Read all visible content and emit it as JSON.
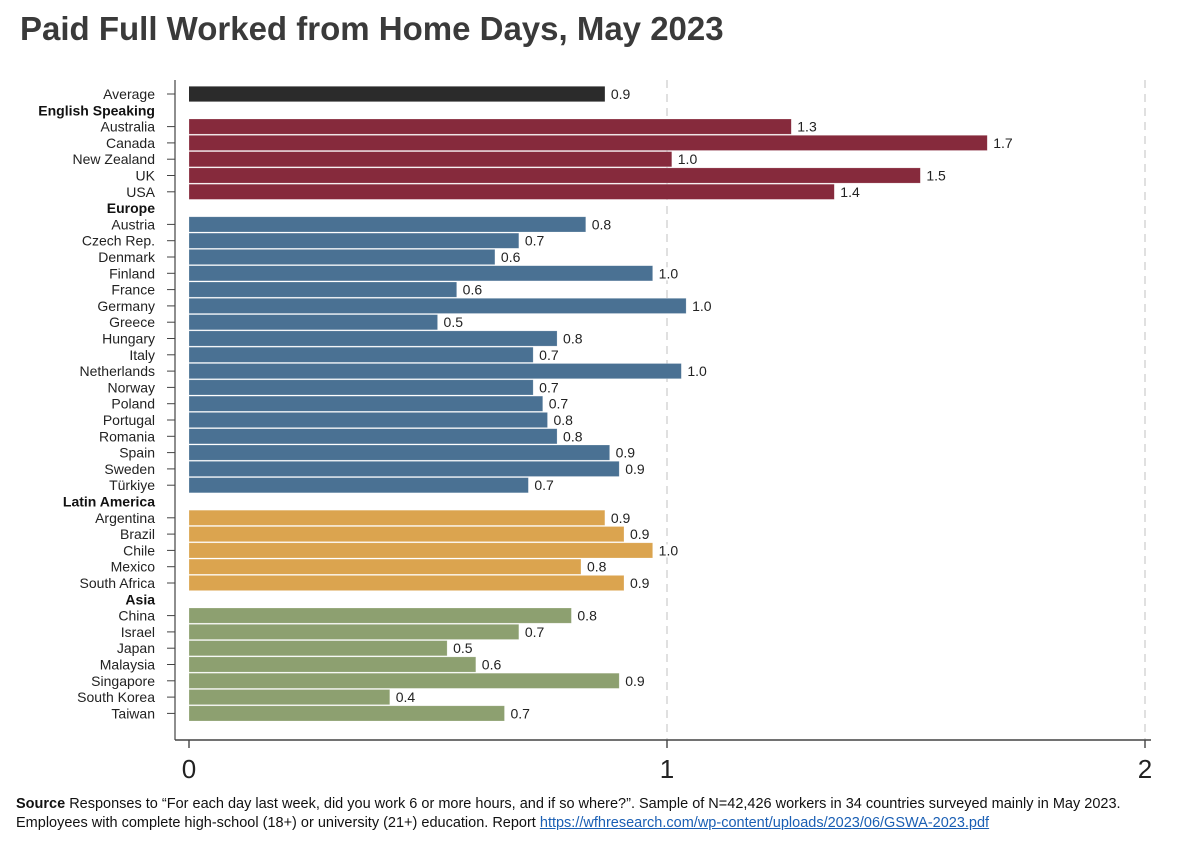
{
  "title": "Paid Full Worked from Home Days, May 2023",
  "source": {
    "label": "Source",
    "text": " Responses to “For each day last week, did you work 6 or more hours, and if so where?”. Sample of N=42,426 workers in 34 countries surveyed mainly in May 2023. Employees with complete high-school (18+) or university (21+) education. Report ",
    "link": "https://wfhresearch.com/wp-content/uploads/2023/06/GSWA-2023.pdf"
  },
  "colors": {
    "Average": "#2b2b2b",
    "English Speaking": "#862a3c",
    "Europe": "#4a7193",
    "Latin America": "#dba44f",
    "Asia": "#8da070"
  },
  "chart_data": {
    "type": "bar",
    "orientation": "horizontal",
    "xlim": [
      0,
      2
    ],
    "xticks": [
      "0",
      "1",
      "2"
    ],
    "grid": "vertical dashed",
    "rows": [
      {
        "kind": "bar",
        "label": "Average",
        "group": "Average",
        "value": 0.87,
        "value_label": "0.9"
      },
      {
        "kind": "header",
        "label": "English Speaking"
      },
      {
        "kind": "bar",
        "label": "Australia",
        "group": "English Speaking",
        "value": 1.26,
        "value_label": "1.3"
      },
      {
        "kind": "bar",
        "label": "Canada",
        "group": "English Speaking",
        "value": 1.67,
        "value_label": "1.7"
      },
      {
        "kind": "bar",
        "label": "New Zealand",
        "group": "English Speaking",
        "value": 1.01,
        "value_label": "1.0"
      },
      {
        "kind": "bar",
        "label": "UK",
        "group": "English Speaking",
        "value": 1.53,
        "value_label": "1.5"
      },
      {
        "kind": "bar",
        "label": "USA",
        "group": "English Speaking",
        "value": 1.35,
        "value_label": "1.4"
      },
      {
        "kind": "header",
        "label": "Europe"
      },
      {
        "kind": "bar",
        "label": "Austria",
        "group": "Europe",
        "value": 0.83,
        "value_label": "0.8"
      },
      {
        "kind": "bar",
        "label": "Czech Rep.",
        "group": "Europe",
        "value": 0.69,
        "value_label": "0.7"
      },
      {
        "kind": "bar",
        "label": "Denmark",
        "group": "Europe",
        "value": 0.64,
        "value_label": "0.6"
      },
      {
        "kind": "bar",
        "label": "Finland",
        "group": "Europe",
        "value": 0.97,
        "value_label": "1.0"
      },
      {
        "kind": "bar",
        "label": "France",
        "group": "Europe",
        "value": 0.56,
        "value_label": "0.6"
      },
      {
        "kind": "bar",
        "label": "Germany",
        "group": "Europe",
        "value": 1.04,
        "value_label": "1.0"
      },
      {
        "kind": "bar",
        "label": "Greece",
        "group": "Europe",
        "value": 0.52,
        "value_label": "0.5"
      },
      {
        "kind": "bar",
        "label": "Hungary",
        "group": "Europe",
        "value": 0.77,
        "value_label": "0.8"
      },
      {
        "kind": "bar",
        "label": "Italy",
        "group": "Europe",
        "value": 0.72,
        "value_label": "0.7"
      },
      {
        "kind": "bar",
        "label": "Netherlands",
        "group": "Europe",
        "value": 1.03,
        "value_label": "1.0"
      },
      {
        "kind": "bar",
        "label": "Norway",
        "group": "Europe",
        "value": 0.72,
        "value_label": "0.7"
      },
      {
        "kind": "bar",
        "label": "Poland",
        "group": "Europe",
        "value": 0.74,
        "value_label": "0.7"
      },
      {
        "kind": "bar",
        "label": "Portugal",
        "group": "Europe",
        "value": 0.75,
        "value_label": "0.8"
      },
      {
        "kind": "bar",
        "label": "Romania",
        "group": "Europe",
        "value": 0.77,
        "value_label": "0.8"
      },
      {
        "kind": "bar",
        "label": "Spain",
        "group": "Europe",
        "value": 0.88,
        "value_label": "0.9"
      },
      {
        "kind": "bar",
        "label": "Sweden",
        "group": "Europe",
        "value": 0.9,
        "value_label": "0.9"
      },
      {
        "kind": "bar",
        "label": "Türkiye",
        "group": "Europe",
        "value": 0.71,
        "value_label": "0.7"
      },
      {
        "kind": "header",
        "label": "Latin America"
      },
      {
        "kind": "bar",
        "label": "Argentina",
        "group": "Latin America",
        "value": 0.87,
        "value_label": "0.9"
      },
      {
        "kind": "bar",
        "label": "Brazil",
        "group": "Latin America",
        "value": 0.91,
        "value_label": "0.9"
      },
      {
        "kind": "bar",
        "label": "Chile",
        "group": "Latin America",
        "value": 0.97,
        "value_label": "1.0"
      },
      {
        "kind": "bar",
        "label": "Mexico",
        "group": "Latin America",
        "value": 0.82,
        "value_label": "0.8"
      },
      {
        "kind": "bar",
        "label": "South Africa",
        "group": "Latin America",
        "value": 0.91,
        "value_label": "0.9"
      },
      {
        "kind": "header",
        "label": "Asia"
      },
      {
        "kind": "bar",
        "label": "China",
        "group": "Asia",
        "value": 0.8,
        "value_label": "0.8"
      },
      {
        "kind": "bar",
        "label": "Israel",
        "group": "Asia",
        "value": 0.69,
        "value_label": "0.7"
      },
      {
        "kind": "bar",
        "label": "Japan",
        "group": "Asia",
        "value": 0.54,
        "value_label": "0.5"
      },
      {
        "kind": "bar",
        "label": "Malaysia",
        "group": "Asia",
        "value": 0.6,
        "value_label": "0.6"
      },
      {
        "kind": "bar",
        "label": "Singapore",
        "group": "Asia",
        "value": 0.9,
        "value_label": "0.9"
      },
      {
        "kind": "bar",
        "label": "South Korea",
        "group": "Asia",
        "value": 0.42,
        "value_label": "0.4"
      },
      {
        "kind": "bar",
        "label": "Taiwan",
        "group": "Asia",
        "value": 0.66,
        "value_label": "0.7"
      }
    ]
  }
}
